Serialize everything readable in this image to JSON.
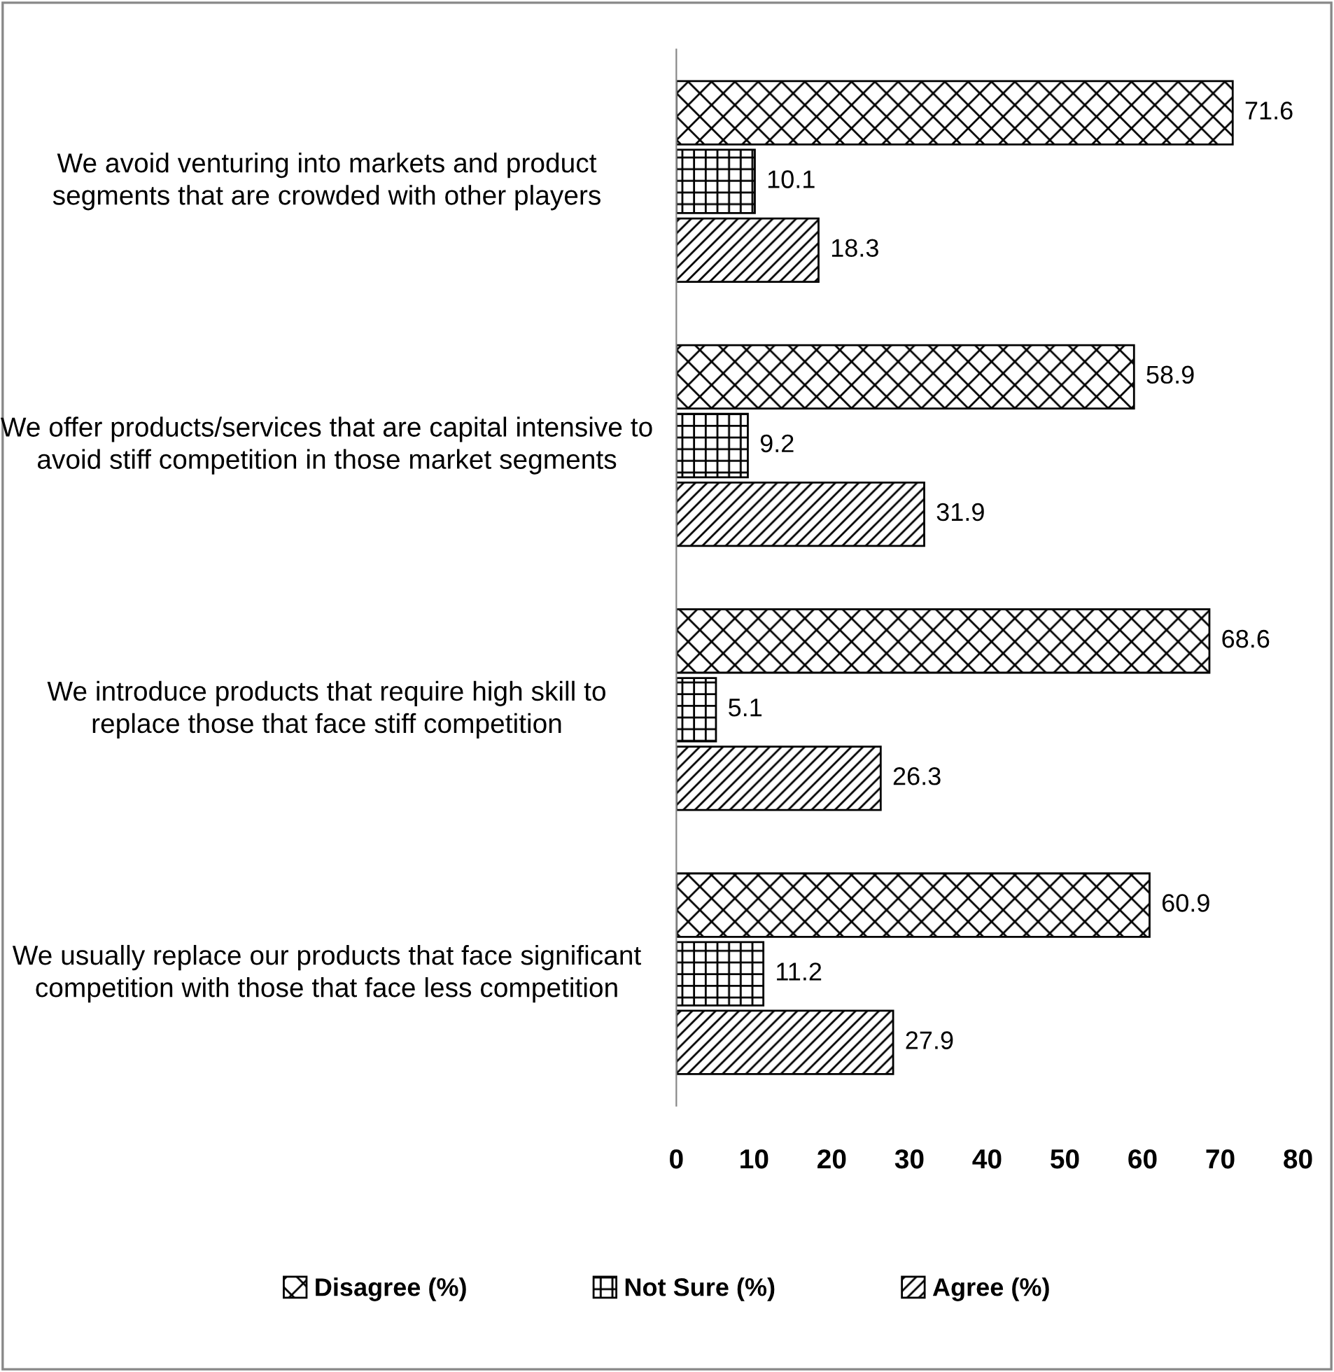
{
  "chart_data": {
    "type": "bar",
    "orientation": "horizontal",
    "categories": [
      "We avoid venturing into markets and product segments that are crowded with other players",
      "We offer products/services that are capital intensive to avoid stiff competition in those market segments",
      "We introduce products that require high skill to replace those that face stiff competition",
      "We usually replace our products that face significant competition with those that face less competition"
    ],
    "series": [
      {
        "name": "Disagree (%)",
        "color": "#000000",
        "values": [
          71.6,
          58.9,
          68.6,
          60.9
        ]
      },
      {
        "name": "Not Sure (%)",
        "color": "#000000",
        "values": [
          10.1,
          9.2,
          5.1,
          11.2
        ]
      },
      {
        "name": "Agree (%)",
        "color": "#000000",
        "values": [
          18.3,
          31.9,
          26.3,
          27.9
        ]
      }
    ],
    "xlim": [
      0,
      80
    ],
    "xticks": [
      0,
      10,
      20,
      30,
      40,
      50,
      60,
      70,
      80
    ],
    "data_labels": true,
    "grid": false,
    "legend": "bottom"
  }
}
